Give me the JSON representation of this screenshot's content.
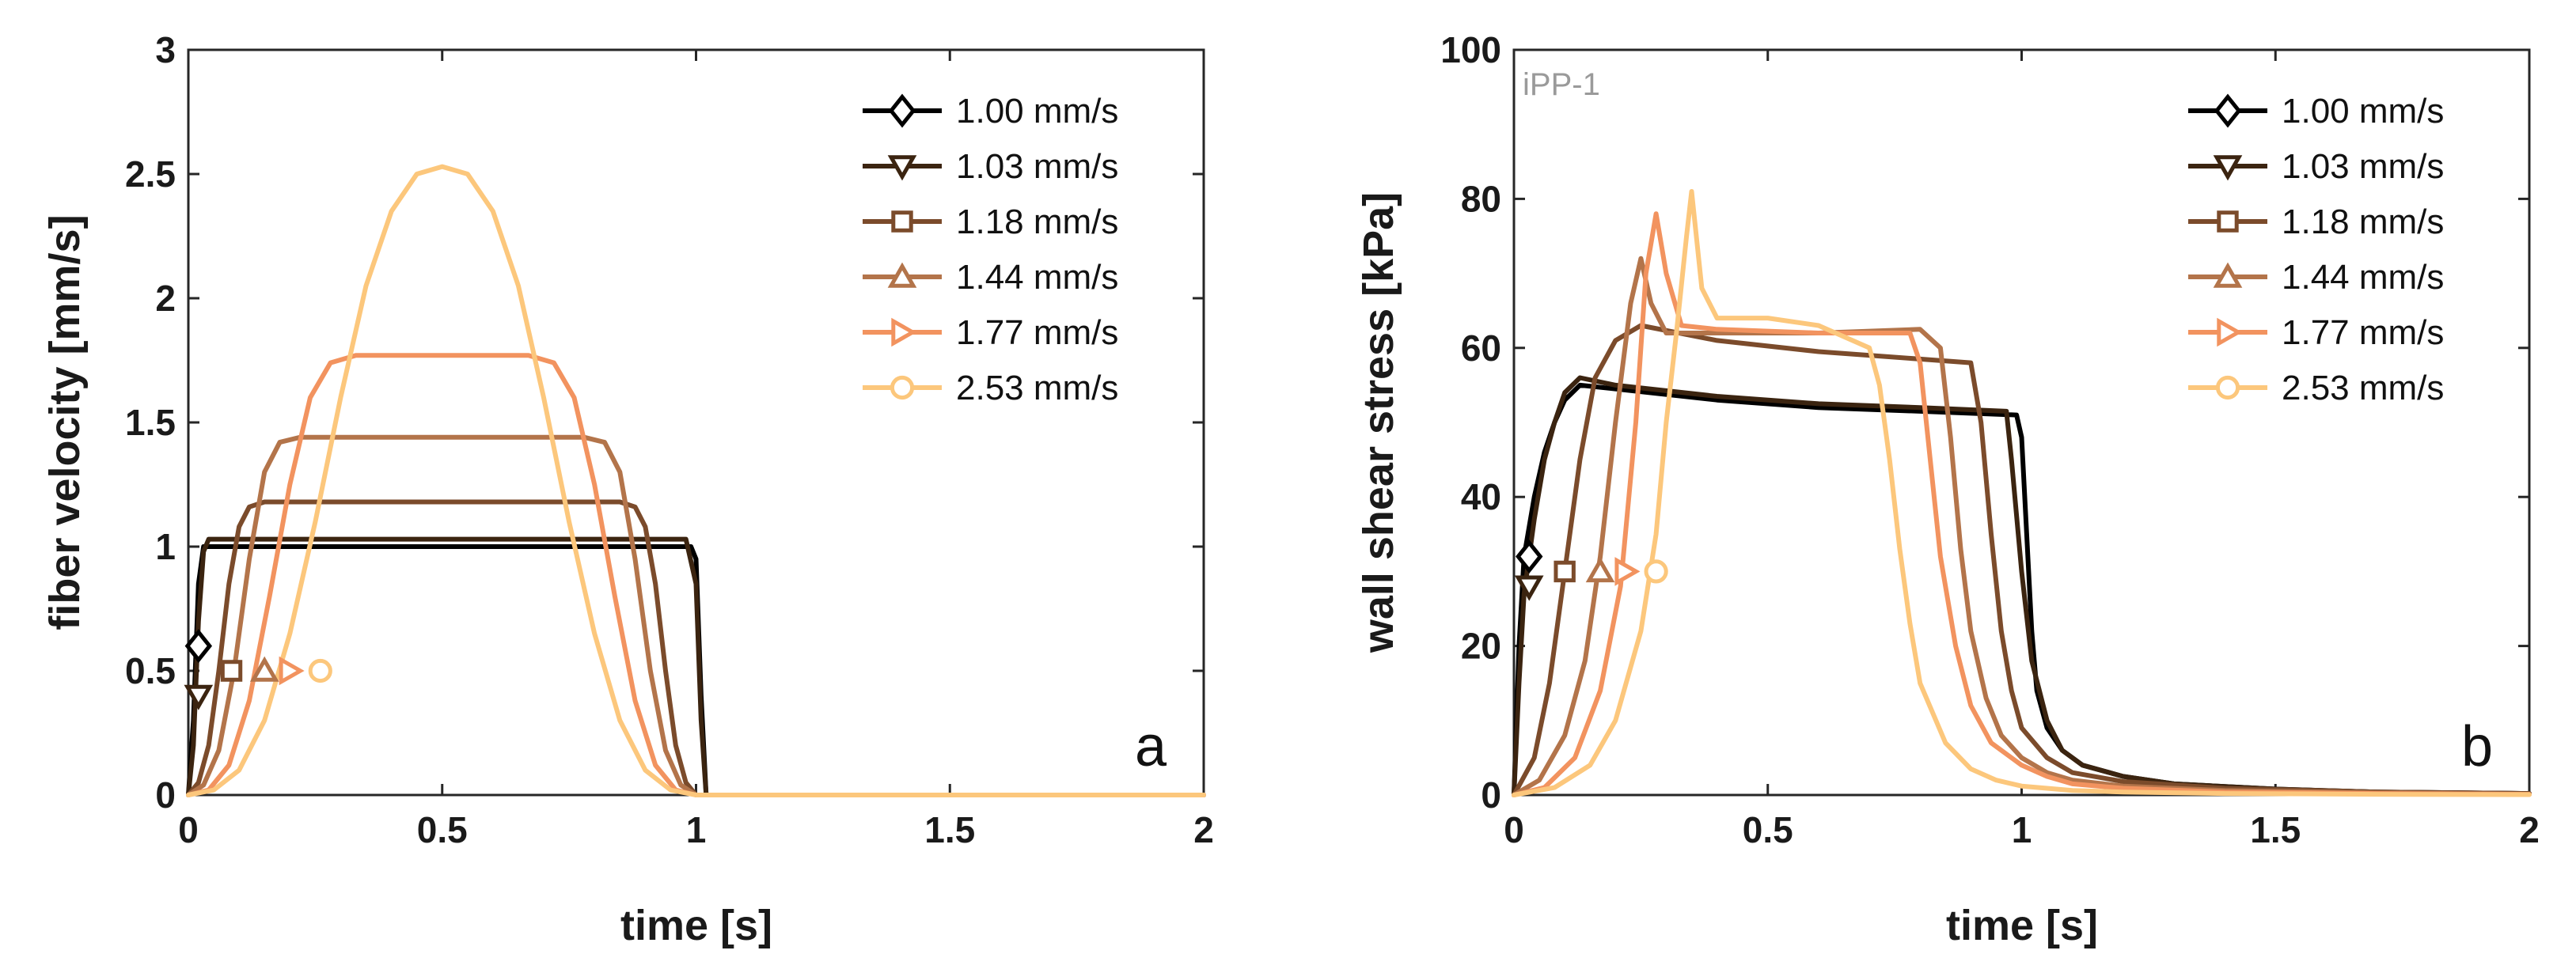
{
  "chart_data": [
    {
      "type": "line",
      "panel_label": "a",
      "xlabel": "time [s]",
      "ylabel": "fiber velocity [mm/s]",
      "xlim": [
        0,
        2
      ],
      "ylim": [
        0,
        3
      ],
      "xticks": [
        "0",
        "0.5",
        "1",
        "1.5",
        "2"
      ],
      "yticks": [
        "0",
        "0.5",
        "1",
        "1.5",
        "2",
        "2.5",
        "3"
      ],
      "xtick_values": [
        0,
        0.5,
        1,
        1.5,
        2
      ],
      "ytick_values": [
        0,
        0.5,
        1,
        1.5,
        2,
        2.5,
        3
      ],
      "annotation": "",
      "legend_location": "top-right",
      "series": [
        {
          "name": "1.00 mm/s",
          "color": "#000000",
          "marker": "diamond",
          "marker_x": 0.02,
          "marker_y": 0.6,
          "x": [
            0,
            0.01,
            0.02,
            0.03,
            0.99,
            1.0,
            1.01,
            1.02,
            2.0
          ],
          "y": [
            0,
            0.3,
            0.85,
            1.0,
            1.0,
            0.95,
            0.4,
            0,
            0
          ]
        },
        {
          "name": "1.03 mm/s",
          "color": "#3b2410",
          "marker": "triangle-down",
          "marker_x": 0.02,
          "marker_y": 0.4,
          "x": [
            0,
            0.01,
            0.02,
            0.03,
            0.04,
            0.98,
            1.0,
            1.01,
            1.02,
            2.0
          ],
          "y": [
            0,
            0.2,
            0.7,
            0.98,
            1.03,
            1.03,
            0.85,
            0.3,
            0,
            0
          ]
        },
        {
          "name": "1.18 mm/s",
          "color": "#7b4b2b",
          "marker": "square",
          "marker_x": 0.085,
          "marker_y": 0.5,
          "x": [
            0,
            0.02,
            0.04,
            0.06,
            0.08,
            0.1,
            0.12,
            0.15,
            0.85,
            0.88,
            0.9,
            0.92,
            0.94,
            0.96,
            0.98,
            1.0,
            2.0
          ],
          "y": [
            0,
            0.05,
            0.2,
            0.5,
            0.85,
            1.08,
            1.16,
            1.18,
            1.18,
            1.16,
            1.08,
            0.85,
            0.5,
            0.2,
            0.05,
            0,
            0
          ]
        },
        {
          "name": "1.44 mm/s",
          "color": "#b3744a",
          "marker": "triangle-up",
          "marker_x": 0.15,
          "marker_y": 0.5,
          "x": [
            0,
            0.03,
            0.06,
            0.09,
            0.12,
            0.15,
            0.18,
            0.22,
            0.78,
            0.82,
            0.85,
            0.88,
            0.91,
            0.94,
            0.97,
            1.0,
            2.0
          ],
          "y": [
            0,
            0.04,
            0.18,
            0.5,
            0.95,
            1.3,
            1.42,
            1.44,
            1.44,
            1.42,
            1.3,
            0.95,
            0.5,
            0.18,
            0.04,
            0,
            0
          ]
        },
        {
          "name": "1.77 mm/s",
          "color": "#f2935f",
          "marker": "triangle-right",
          "marker_x": 0.2,
          "marker_y": 0.5,
          "x": [
            0,
            0.04,
            0.08,
            0.12,
            0.16,
            0.2,
            0.24,
            0.28,
            0.33,
            0.67,
            0.72,
            0.76,
            0.8,
            0.84,
            0.88,
            0.92,
            0.96,
            1.0,
            2.0
          ],
          "y": [
            0,
            0.02,
            0.12,
            0.38,
            0.8,
            1.25,
            1.6,
            1.74,
            1.77,
            1.77,
            1.74,
            1.6,
            1.25,
            0.8,
            0.38,
            0.12,
            0.02,
            0,
            0
          ]
        },
        {
          "name": "2.53 mm/s",
          "color": "#fcc77c",
          "marker": "circle",
          "marker_x": 0.26,
          "marker_y": 0.5,
          "x": [
            0,
            0.05,
            0.1,
            0.15,
            0.2,
            0.25,
            0.3,
            0.35,
            0.4,
            0.45,
            0.5,
            0.55,
            0.6,
            0.65,
            0.7,
            0.75,
            0.8,
            0.85,
            0.9,
            0.95,
            1.0,
            2.0
          ],
          "y": [
            0,
            0.02,
            0.1,
            0.3,
            0.65,
            1.1,
            1.6,
            2.05,
            2.35,
            2.5,
            2.53,
            2.5,
            2.35,
            2.05,
            1.6,
            1.1,
            0.65,
            0.3,
            0.1,
            0.02,
            0,
            0
          ]
        }
      ]
    },
    {
      "type": "line",
      "panel_label": "b",
      "xlabel": "time [s]",
      "ylabel": "wall shear stress [kPa]",
      "xlim": [
        0,
        2
      ],
      "ylim": [
        0,
        100
      ],
      "xticks": [
        "0",
        "0.5",
        "1",
        "1.5",
        "2"
      ],
      "yticks": [
        "0",
        "20",
        "40",
        "60",
        "80",
        "100"
      ],
      "xtick_values": [
        0,
        0.5,
        1,
        1.5,
        2
      ],
      "ytick_values": [
        0,
        20,
        40,
        60,
        80,
        100
      ],
      "annotation": "iPP-1",
      "legend_location": "top-right",
      "series": [
        {
          "name": "1.00 mm/s",
          "color": "#000000",
          "marker": "diamond",
          "marker_x": 0.03,
          "marker_y": 32,
          "x": [
            0,
            0.01,
            0.02,
            0.04,
            0.06,
            0.08,
            0.1,
            0.13,
            0.2,
            0.4,
            0.6,
            0.8,
            0.99,
            1.0,
            1.01,
            1.02,
            1.03,
            1.05,
            1.08,
            1.12,
            1.2,
            1.3,
            1.5,
            1.7,
            2.0
          ],
          "y": [
            0,
            20,
            32,
            40,
            46,
            50,
            53,
            55,
            54.5,
            53,
            52,
            51.5,
            51,
            48,
            35,
            22,
            14,
            9,
            6,
            4,
            2.5,
            1.5,
            0.8,
            0.4,
            0.2
          ]
        },
        {
          "name": "1.03 mm/s",
          "color": "#3b2410",
          "marker": "triangle-down",
          "marker_x": 0.03,
          "marker_y": 28,
          "x": [
            0,
            0.01,
            0.02,
            0.04,
            0.06,
            0.08,
            0.1,
            0.13,
            0.2,
            0.4,
            0.6,
            0.8,
            0.97,
            0.98,
            1.0,
            1.02,
            1.05,
            1.08,
            1.12,
            1.2,
            1.3,
            1.5,
            1.7,
            2.0
          ],
          "y": [
            0,
            15,
            27,
            37,
            45,
            50,
            54,
            56,
            55,
            53.5,
            52.5,
            52,
            51.5,
            45,
            30,
            18,
            10,
            6,
            4,
            2.5,
            1.5,
            0.8,
            0.4,
            0.2
          ]
        },
        {
          "name": "1.18 mm/s",
          "color": "#7b4b2b",
          "marker": "square",
          "marker_x": 0.1,
          "marker_y": 30,
          "x": [
            0,
            0.04,
            0.07,
            0.1,
            0.13,
            0.16,
            0.2,
            0.25,
            0.4,
            0.6,
            0.8,
            0.9,
            0.92,
            0.94,
            0.96,
            0.98,
            1.0,
            1.05,
            1.1,
            1.2,
            1.4,
            1.7,
            2.0
          ],
          "y": [
            0,
            5,
            15,
            30,
            45,
            56,
            61,
            63,
            61,
            59.5,
            58.5,
            58,
            50,
            35,
            22,
            14,
            9,
            5,
            3,
            1.8,
            0.9,
            0.4,
            0.2
          ]
        },
        {
          "name": "1.44 mm/s",
          "color": "#b3744a",
          "marker": "triangle-up",
          "marker_x": 0.17,
          "marker_y": 30,
          "x": [
            0,
            0.05,
            0.1,
            0.14,
            0.17,
            0.2,
            0.23,
            0.25,
            0.27,
            0.3,
            0.4,
            0.6,
            0.8,
            0.84,
            0.86,
            0.88,
            0.9,
            0.93,
            0.96,
            1.0,
            1.05,
            1.1,
            1.2,
            1.4,
            1.7,
            2.0
          ],
          "y": [
            0,
            2,
            8,
            18,
            32,
            50,
            66,
            72,
            66,
            62,
            62,
            62,
            62.5,
            60,
            48,
            33,
            22,
            13,
            8,
            5,
            3,
            2,
            1.2,
            0.6,
            0.3,
            0.1
          ]
        },
        {
          "name": "1.77 mm/s",
          "color": "#f2935f",
          "marker": "triangle-right",
          "marker_x": 0.22,
          "marker_y": 30,
          "x": [
            0,
            0.06,
            0.12,
            0.17,
            0.21,
            0.24,
            0.26,
            0.28,
            0.3,
            0.33,
            0.4,
            0.6,
            0.78,
            0.8,
            0.82,
            0.84,
            0.87,
            0.9,
            0.94,
            1.0,
            1.05,
            1.1,
            1.2,
            1.4,
            1.7,
            2.0
          ],
          "y": [
            0,
            1,
            5,
            14,
            28,
            50,
            70,
            78,
            70,
            63,
            62.5,
            62,
            62,
            58,
            45,
            32,
            20,
            12,
            7,
            4,
            2.5,
            1.5,
            0.9,
            0.4,
            0.2,
            0.1
          ]
        },
        {
          "name": "2.53 mm/s",
          "color": "#fcc77c",
          "marker": "circle",
          "marker_x": 0.28,
          "marker_y": 30,
          "x": [
            0,
            0.08,
            0.15,
            0.2,
            0.25,
            0.28,
            0.3,
            0.32,
            0.34,
            0.35,
            0.37,
            0.4,
            0.5,
            0.6,
            0.7,
            0.72,
            0.74,
            0.76,
            0.78,
            0.8,
            0.85,
            0.9,
            0.95,
            1.0,
            1.1,
            1.2,
            1.4,
            1.7,
            2.0
          ],
          "y": [
            0,
            1,
            4,
            10,
            22,
            35,
            50,
            62,
            75,
            81,
            68,
            64,
            64,
            63,
            60,
            55,
            45,
            33,
            23,
            15,
            7,
            3.5,
            2,
            1.2,
            0.6,
            0.4,
            0.2,
            0.1,
            0.05
          ]
        }
      ]
    }
  ]
}
